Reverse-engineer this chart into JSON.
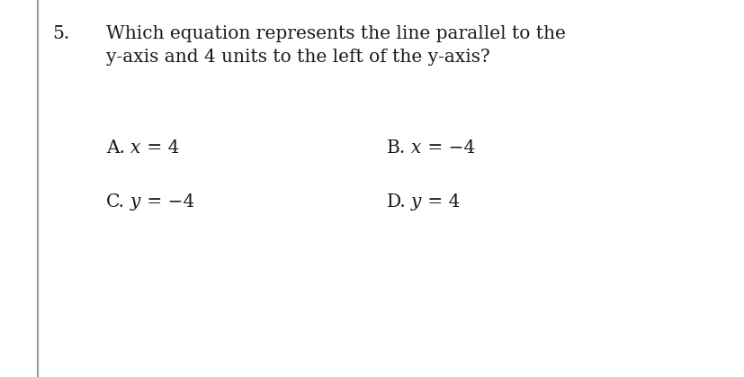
{
  "question_number": "5.",
  "question_text_line1": "Which equation represents the line parallel to the",
  "question_text_line2": "y-axis and 4 units to the left of the y-axis?",
  "opt_A_label": "A.",
  "opt_A_eq_parts": [
    [
      "x",
      true
    ],
    [
      " = 4",
      false
    ]
  ],
  "opt_B_label": "B.",
  "opt_B_eq_parts": [
    [
      "x",
      true
    ],
    [
      " = −4",
      false
    ]
  ],
  "opt_C_label": "C.",
  "opt_C_eq_parts": [
    [
      "y",
      true
    ],
    [
      " = −4",
      false
    ]
  ],
  "opt_D_label": "D.",
  "opt_D_eq_parts": [
    [
      "y",
      true
    ],
    [
      " = 4",
      false
    ]
  ],
  "background_color": "#ffffff",
  "text_color": "#1a1a1a",
  "border_color": "#999999",
  "font_size": 14.5,
  "figwidth": 8.28,
  "figheight": 4.19,
  "dpi": 100
}
